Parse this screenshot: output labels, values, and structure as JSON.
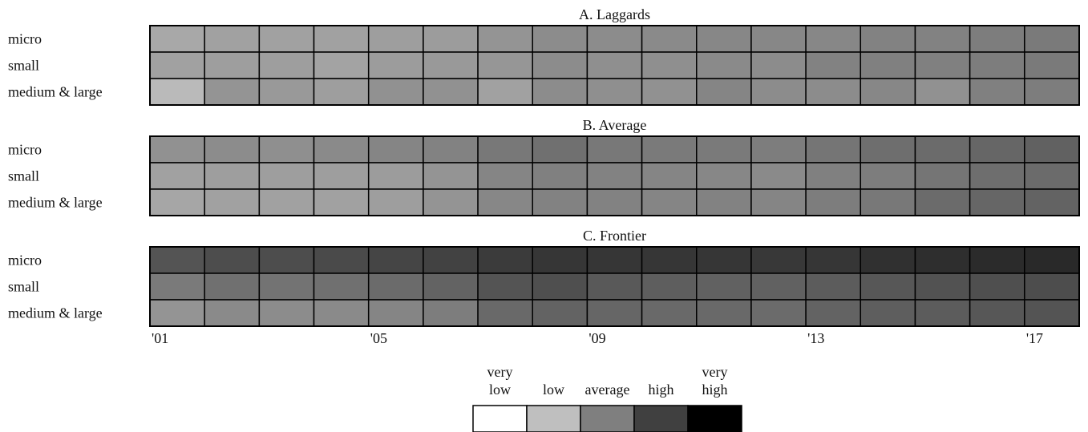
{
  "chart_data": {
    "type": "heatmap",
    "x_ticks": [
      "'01",
      "'05",
      "'09",
      "'13",
      "'17"
    ],
    "x_tick_years": [
      2001,
      2005,
      2009,
      2013,
      2017
    ],
    "years": [
      2001,
      2002,
      2003,
      2004,
      2005,
      2006,
      2007,
      2008,
      2009,
      2010,
      2011,
      2012,
      2013,
      2014,
      2015,
      2016,
      2017
    ],
    "rows": [
      "micro",
      "small",
      "medium & large"
    ],
    "value_scale": "grayscale intensity 0 (very low, white) to 1 (very high, black)",
    "panels": [
      {
        "title": "A. Laggards",
        "values": [
          [
            0.34,
            0.37,
            0.37,
            0.37,
            0.38,
            0.39,
            0.42,
            0.45,
            0.45,
            0.46,
            0.47,
            0.47,
            0.47,
            0.49,
            0.49,
            0.51,
            0.52
          ],
          [
            0.37,
            0.38,
            0.38,
            0.36,
            0.39,
            0.4,
            0.41,
            0.45,
            0.44,
            0.44,
            0.46,
            0.45,
            0.49,
            0.5,
            0.5,
            0.51,
            0.52
          ],
          [
            0.27,
            0.42,
            0.4,
            0.38,
            0.43,
            0.43,
            0.37,
            0.45,
            0.44,
            0.43,
            0.48,
            0.45,
            0.45,
            0.47,
            0.43,
            0.5,
            0.51
          ]
        ]
      },
      {
        "title": "B. Average",
        "values": [
          [
            0.43,
            0.45,
            0.44,
            0.46,
            0.48,
            0.49,
            0.53,
            0.56,
            0.53,
            0.52,
            0.52,
            0.51,
            0.54,
            0.57,
            0.58,
            0.6,
            0.62
          ],
          [
            0.37,
            0.38,
            0.38,
            0.38,
            0.39,
            0.42,
            0.48,
            0.5,
            0.49,
            0.48,
            0.47,
            0.46,
            0.5,
            0.51,
            0.54,
            0.57,
            0.58
          ],
          [
            0.35,
            0.37,
            0.37,
            0.37,
            0.38,
            0.42,
            0.47,
            0.49,
            0.49,
            0.48,
            0.49,
            0.48,
            0.51,
            0.53,
            0.58,
            0.6,
            0.61
          ]
        ]
      },
      {
        "title": "C. Frontier",
        "values": [
          [
            0.67,
            0.7,
            0.7,
            0.71,
            0.73,
            0.74,
            0.77,
            0.79,
            0.79,
            0.79,
            0.79,
            0.78,
            0.79,
            0.81,
            0.82,
            0.83,
            0.84
          ],
          [
            0.52,
            0.56,
            0.55,
            0.56,
            0.58,
            0.61,
            0.67,
            0.69,
            0.65,
            0.63,
            0.62,
            0.62,
            0.64,
            0.66,
            0.68,
            0.69,
            0.7
          ],
          [
            0.42,
            0.46,
            0.45,
            0.46,
            0.48,
            0.51,
            0.59,
            0.61,
            0.6,
            0.59,
            0.59,
            0.58,
            0.61,
            0.63,
            0.64,
            0.66,
            0.67
          ]
        ]
      }
    ],
    "legend": [
      {
        "label_top": "very",
        "label": "low",
        "color": "#ffffff"
      },
      {
        "label_top": "",
        "label": "low",
        "color": "#bfbfbf"
      },
      {
        "label_top": "",
        "label": "average",
        "color": "#7f7f7f"
      },
      {
        "label_top": "",
        "label": "high",
        "color": "#404040"
      },
      {
        "label_top": "very",
        "label": "high",
        "color": "#000000"
      }
    ],
    "legend_placement": "bottom-center",
    "grid": true
  }
}
